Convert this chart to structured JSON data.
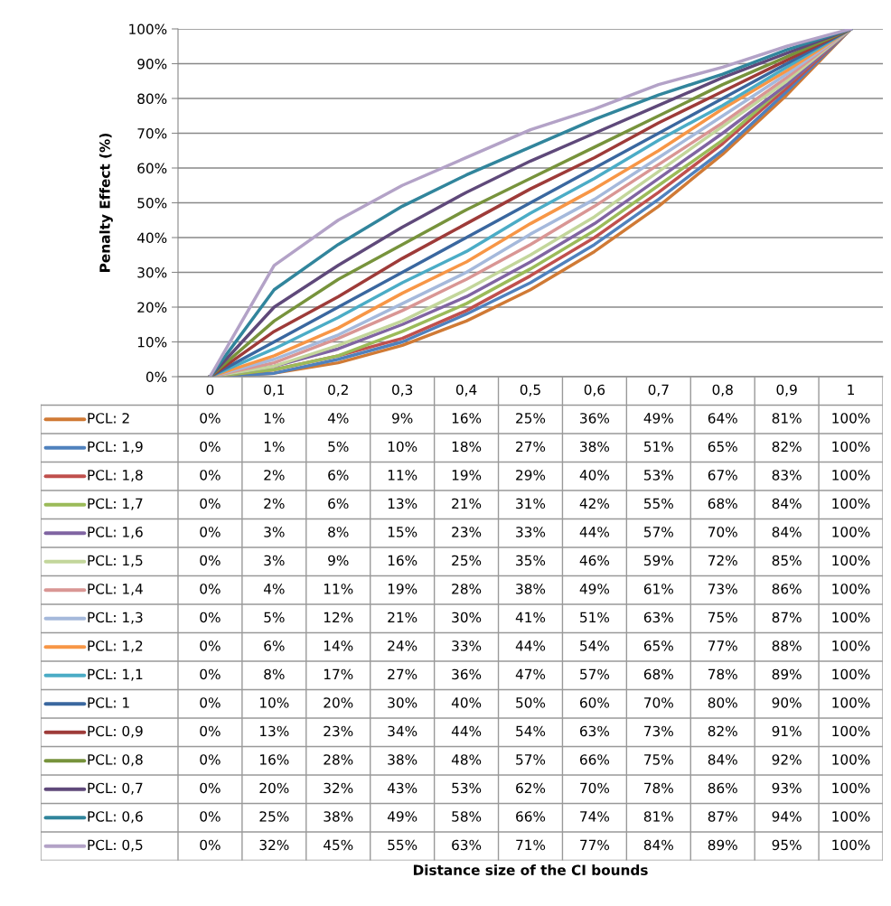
{
  "chart_data": {
    "type": "line",
    "annotations": [
      "Distance size of the CI bounds"
    ],
    "ylabel": "Penalty Effect (%)",
    "categories": [
      "0",
      "0,1",
      "0,2",
      "0,3",
      "0,4",
      "0,5",
      "0,6",
      "0,7",
      "0,8",
      "0,9",
      "1"
    ],
    "ylim": [
      0,
      100
    ],
    "yticks": [
      {
        "value": 0,
        "label": "0%"
      },
      {
        "value": 10,
        "label": "10%"
      },
      {
        "value": 20,
        "label": "20%"
      },
      {
        "value": 30,
        "label": "30%"
      },
      {
        "value": 40,
        "label": "40%"
      },
      {
        "value": 50,
        "label": "50%"
      },
      {
        "value": 60,
        "label": "60%"
      },
      {
        "value": 70,
        "label": "70%"
      },
      {
        "value": 80,
        "label": "80%"
      },
      {
        "value": 90,
        "label": "90%"
      },
      {
        "value": 100,
        "label": "100%"
      }
    ],
    "grid": "y",
    "legend": "left",
    "marker": "none",
    "line_style": "solid",
    "series": [
      {
        "name": "PCL: 2",
        "color": "#d07a35",
        "values": [
          0,
          1,
          4,
          9,
          16,
          25,
          36,
          49,
          64,
          81,
          100
        ],
        "value_labels": [
          "0%",
          "1%",
          "4%",
          "9%",
          "16%",
          "25%",
          "36%",
          "49%",
          "64%",
          "81%",
          "100%"
        ]
      },
      {
        "name": "PCL: 1,9",
        "color": "#4f81bd",
        "values": [
          0,
          1,
          5,
          10,
          18,
          27,
          38,
          51,
          65,
          82,
          100
        ],
        "value_labels": [
          "0%",
          "1%",
          "5%",
          "10%",
          "18%",
          "27%",
          "38%",
          "51%",
          "65%",
          "82%",
          "100%"
        ]
      },
      {
        "name": "PCL: 1,8",
        "color": "#c0504d",
        "values": [
          0,
          2,
          6,
          11,
          19,
          29,
          40,
          53,
          67,
          83,
          100
        ],
        "value_labels": [
          "0%",
          "2%",
          "6%",
          "11%",
          "19%",
          "29%",
          "40%",
          "53%",
          "67%",
          "83%",
          "100%"
        ]
      },
      {
        "name": "PCL: 1,7",
        "color": "#9bbb59",
        "values": [
          0,
          2,
          6,
          13,
          21,
          31,
          42,
          55,
          68,
          84,
          100
        ],
        "value_labels": [
          "0%",
          "2%",
          "6%",
          "13%",
          "21%",
          "31%",
          "42%",
          "55%",
          "68%",
          "84%",
          "100%"
        ]
      },
      {
        "name": "PCL: 1,6",
        "color": "#8064a2",
        "values": [
          0,
          3,
          8,
          15,
          23,
          33,
          44,
          57,
          70,
          84,
          100
        ],
        "value_labels": [
          "0%",
          "3%",
          "8%",
          "15%",
          "23%",
          "33%",
          "44%",
          "57%",
          "70%",
          "84%",
          "100%"
        ]
      },
      {
        "name": "PCL: 1,5",
        "color": "#c3d69b",
        "values": [
          0,
          3,
          9,
          16,
          25,
          35,
          46,
          59,
          72,
          85,
          100
        ],
        "value_labels": [
          "0%",
          "3%",
          "9%",
          "16%",
          "25%",
          "35%",
          "46%",
          "59%",
          "72%",
          "85%",
          "100%"
        ]
      },
      {
        "name": "PCL: 1,4",
        "color": "#d99694",
        "values": [
          0,
          4,
          11,
          19,
          28,
          38,
          49,
          61,
          73,
          86,
          100
        ],
        "value_labels": [
          "0%",
          "4%",
          "11%",
          "19%",
          "28%",
          "38%",
          "49%",
          "61%",
          "73%",
          "86%",
          "100%"
        ]
      },
      {
        "name": "PCL: 1,3",
        "color": "#a5b9db",
        "values": [
          0,
          5,
          12,
          21,
          30,
          41,
          51,
          63,
          75,
          87,
          100
        ],
        "value_labels": [
          "0%",
          "5%",
          "12%",
          "21%",
          "30%",
          "41%",
          "51%",
          "63%",
          "75%",
          "87%",
          "100%"
        ]
      },
      {
        "name": "PCL: 1,2",
        "color": "#f79646",
        "values": [
          0,
          6,
          14,
          24,
          33,
          44,
          54,
          65,
          77,
          88,
          100
        ],
        "value_labels": [
          "0%",
          "6%",
          "14%",
          "24%",
          "33%",
          "44%",
          "54%",
          "65%",
          "77%",
          "88%",
          "100%"
        ]
      },
      {
        "name": "PCL: 1,1",
        "color": "#4bacc6",
        "values": [
          0,
          8,
          17,
          27,
          36,
          47,
          57,
          68,
          78,
          89,
          100
        ],
        "value_labels": [
          "0%",
          "8%",
          "17%",
          "27%",
          "36%",
          "47%",
          "57%",
          "68%",
          "78%",
          "89%",
          "100%"
        ]
      },
      {
        "name": "PCL: 1",
        "color": "#3a679f",
        "values": [
          0,
          10,
          20,
          30,
          40,
          50,
          60,
          70,
          80,
          90,
          100
        ],
        "value_labels": [
          "0%",
          "10%",
          "20%",
          "30%",
          "40%",
          "50%",
          "60%",
          "70%",
          "80%",
          "90%",
          "100%"
        ]
      },
      {
        "name": "PCL: 0,9",
        "color": "#9e3b39",
        "values": [
          0,
          13,
          23,
          34,
          44,
          54,
          63,
          73,
          82,
          91,
          100
        ],
        "value_labels": [
          "0%",
          "13%",
          "23%",
          "34%",
          "44%",
          "54%",
          "63%",
          "73%",
          "82%",
          "91%",
          "100%"
        ]
      },
      {
        "name": "PCL: 0,8",
        "color": "#77933c",
        "values": [
          0,
          16,
          28,
          38,
          48,
          57,
          66,
          75,
          84,
          92,
          100
        ],
        "value_labels": [
          "0%",
          "16%",
          "28%",
          "38%",
          "48%",
          "57%",
          "66%",
          "75%",
          "84%",
          "92%",
          "100%"
        ]
      },
      {
        "name": "PCL: 0,7",
        "color": "#5f497a",
        "values": [
          0,
          20,
          32,
          43,
          53,
          62,
          70,
          78,
          86,
          93,
          100
        ],
        "value_labels": [
          "0%",
          "20%",
          "32%",
          "43%",
          "53%",
          "62%",
          "70%",
          "78%",
          "86%",
          "93%",
          "100%"
        ]
      },
      {
        "name": "PCL: 0,6",
        "color": "#31859c",
        "values": [
          0,
          25,
          38,
          49,
          58,
          66,
          74,
          81,
          87,
          94,
          100
        ],
        "value_labels": [
          "0%",
          "25%",
          "38%",
          "49%",
          "58%",
          "66%",
          "74%",
          "81%",
          "87%",
          "94%",
          "100%"
        ]
      },
      {
        "name": "PCL: 0,5",
        "color": "#b3a2c7",
        "values": [
          0,
          32,
          45,
          55,
          63,
          71,
          77,
          84,
          89,
          95,
          100
        ],
        "value_labels": [
          "0%",
          "32%",
          "45%",
          "55%",
          "63%",
          "71%",
          "77%",
          "84%",
          "89%",
          "95%",
          "100%"
        ]
      }
    ]
  }
}
